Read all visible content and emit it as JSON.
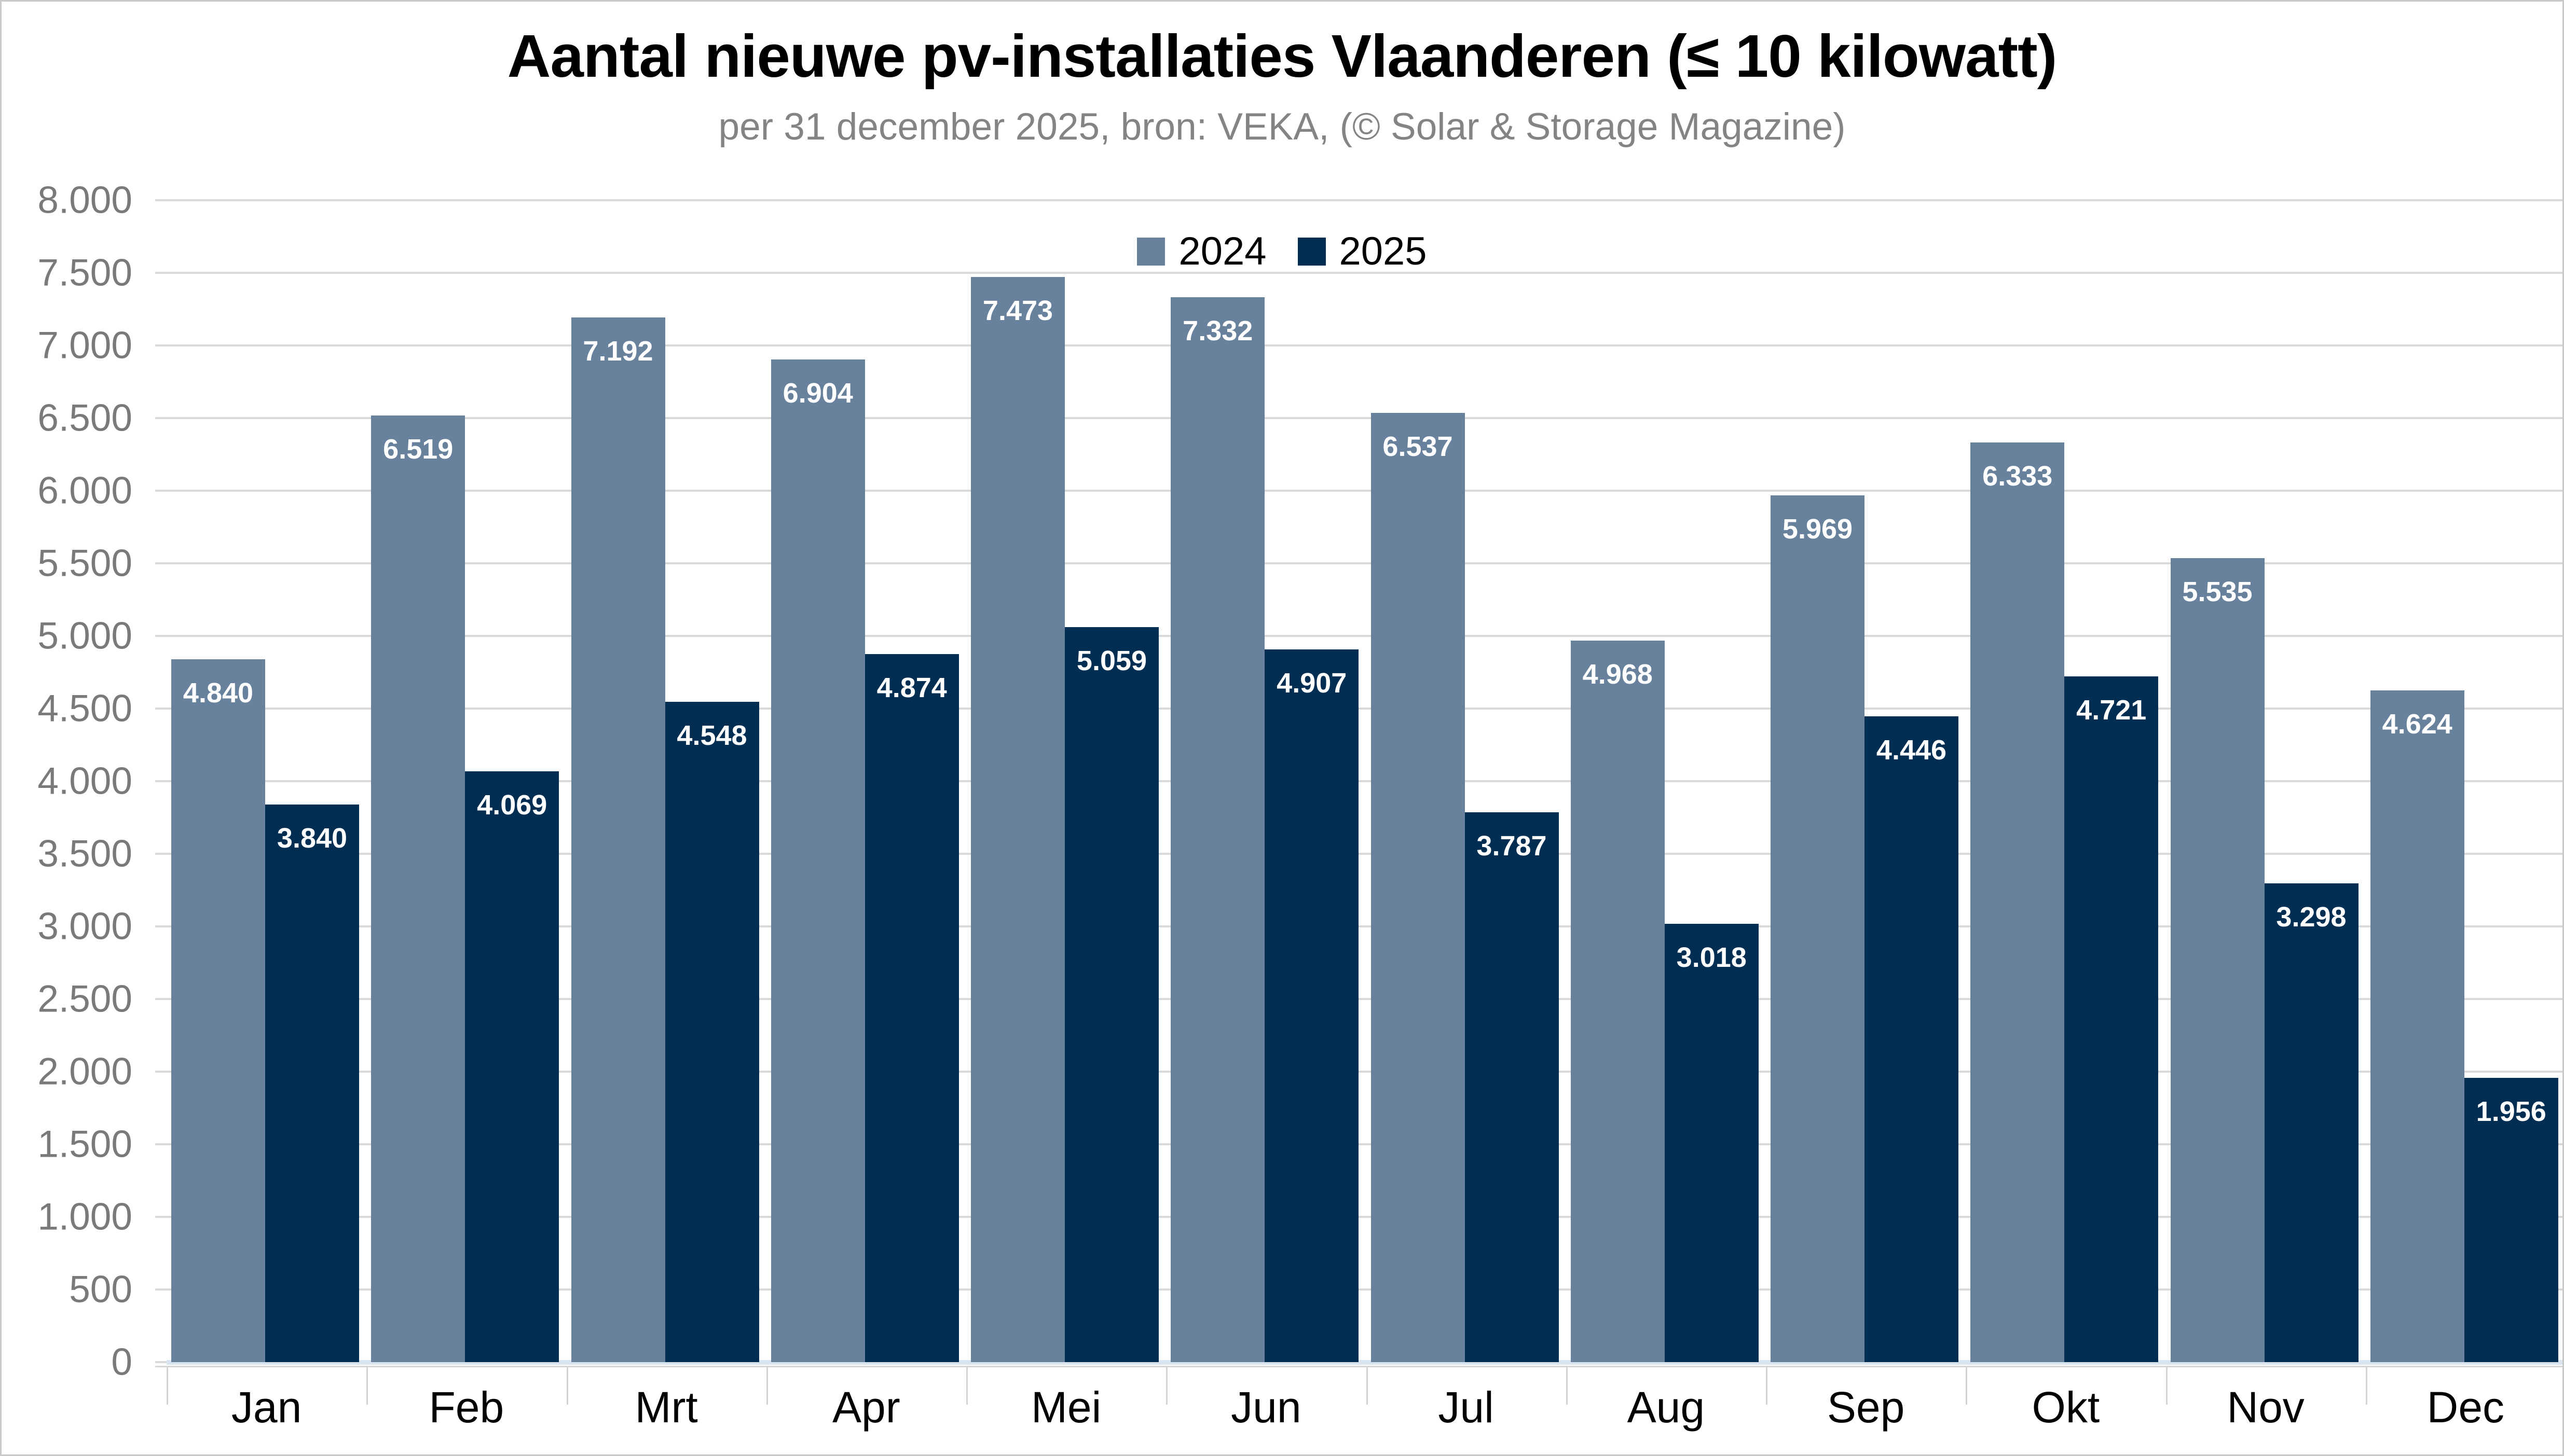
{
  "page": {
    "background": "#ffffff",
    "border_color": "#c9c9c9"
  },
  "header": {
    "title": "Aantal nieuwe pv-installaties Vlaanderen (≤ 10 kilowatt)",
    "subtitle": "per 31 december 2025, bron: VEKA, (© Solar & Storage Magazine)"
  },
  "legend": {
    "position": "top-center",
    "items": [
      {
        "label": "2024",
        "color": "#68819C"
      },
      {
        "label": "2025",
        "color": "#002E52"
      }
    ]
  },
  "chart_data": {
    "type": "bar",
    "title": "Aantal nieuwe pv-installaties Vlaanderen (≤ 10 kilowatt)",
    "subtitle": "per 31 december 2025, bron: VEKA, (© Solar & Storage Magazine)",
    "categories": [
      "Jan",
      "Feb",
      "Mrt",
      "Apr",
      "Mei",
      "Jun",
      "Jul",
      "Aug",
      "Sep",
      "Okt",
      "Nov",
      "Dec"
    ],
    "series": [
      {
        "name": "2024",
        "color": "#68819C",
        "values": [
          4840,
          6519,
          7192,
          6904,
          7473,
          7332,
          6537,
          4968,
          5969,
          6333,
          5535,
          4624
        ],
        "labels": [
          "4.840",
          "6.519",
          "7.192",
          "6.904",
          "7.473",
          "7.332",
          "6.537",
          "4.968",
          "5.969",
          "6.333",
          "5.535",
          "4.624"
        ]
      },
      {
        "name": "2025",
        "color": "#002E52",
        "values": [
          3840,
          4069,
          4548,
          4874,
          5059,
          4907,
          3787,
          3018,
          4446,
          4721,
          3298,
          1956
        ],
        "labels": [
          "3.840",
          "4.069",
          "4.548",
          "4.874",
          "5.059",
          "4.907",
          "3.787",
          "3.018",
          "4.446",
          "4.721",
          "3.298",
          "1.956"
        ]
      }
    ],
    "y_axis": {
      "min": 0,
      "max": 8000,
      "step": 500,
      "tick_labels": [
        "0",
        "500",
        "1.000",
        "1.500",
        "2.000",
        "2.500",
        "3.000",
        "3.500",
        "4.000",
        "4.500",
        "5.000",
        "5.500",
        "6.000",
        "6.500",
        "7.000",
        "7.500",
        "8.000"
      ]
    },
    "grid": true,
    "legend_position": "top-center",
    "value_label_style": "inside-top-white-bold",
    "gridline_color": "#d9d9d9",
    "axis_label_color": "#7a7a7a",
    "category_label_color": "#000000"
  }
}
